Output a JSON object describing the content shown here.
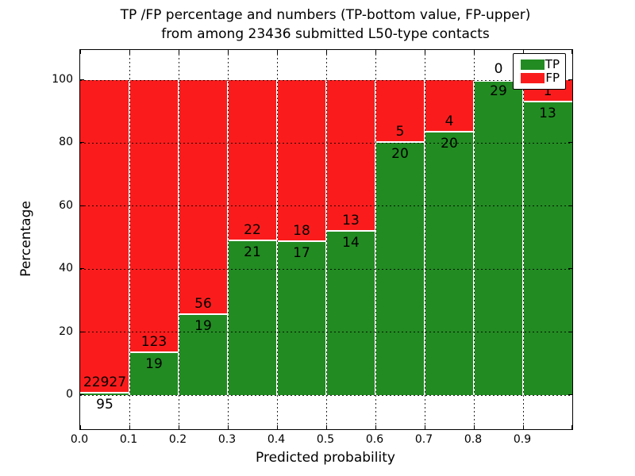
{
  "title": {
    "line1": "TP /FP percentage and numbers (TP-bottom value, FP-upper)",
    "line2": "from among 23436 submitted L50-type contacts"
  },
  "chart_data": {
    "type": "bar",
    "stacked": true,
    "normalized": "each bin scaled to 100%, green TP portion on bottom, red FP on top",
    "title_lines": [
      "TP /FP percentage and numbers (TP-bottom value, FP-upper)",
      "from among 23436 submitted L50-type contacts"
    ],
    "xlabel": "Predicted probability",
    "ylabel": "Percentage",
    "total_contacts": 23436,
    "bins": [
      "0.0-0.1",
      "0.1-0.2",
      "0.2-0.3",
      "0.3-0.4",
      "0.4-0.5",
      "0.5-0.6",
      "0.6-0.7",
      "0.7-0.8",
      "0.8-0.9",
      "0.9-1.0"
    ],
    "x_tick_labels": [
      "0.0",
      "0.1",
      "0.2",
      "0.3",
      "0.4",
      "0.5",
      "0.6",
      "0.7",
      "0.8",
      "0.9"
    ],
    "y_ticks": [
      0,
      20,
      40,
      60,
      80,
      100
    ],
    "xlim": [
      0.0,
      1.0
    ],
    "ylim": [
      -11,
      110
    ],
    "grid": true,
    "legend_position": "upper right",
    "series": [
      {
        "name": "TP",
        "color": "#228b22",
        "counts": [
          95,
          19,
          19,
          21,
          17,
          14,
          20,
          20,
          29,
          13
        ],
        "percent": [
          0.41,
          13.38,
          25.33,
          48.84,
          48.57,
          51.85,
          80.0,
          83.33,
          100.0,
          92.86
        ]
      },
      {
        "name": "FP",
        "color": "#fa1c1c",
        "counts": [
          22927,
          123,
          56,
          22,
          18,
          13,
          5,
          4,
          0,
          1
        ],
        "percent": [
          99.59,
          86.62,
          74.67,
          51.16,
          51.43,
          48.15,
          20.0,
          16.67,
          0.0,
          7.14
        ]
      }
    ]
  }
}
